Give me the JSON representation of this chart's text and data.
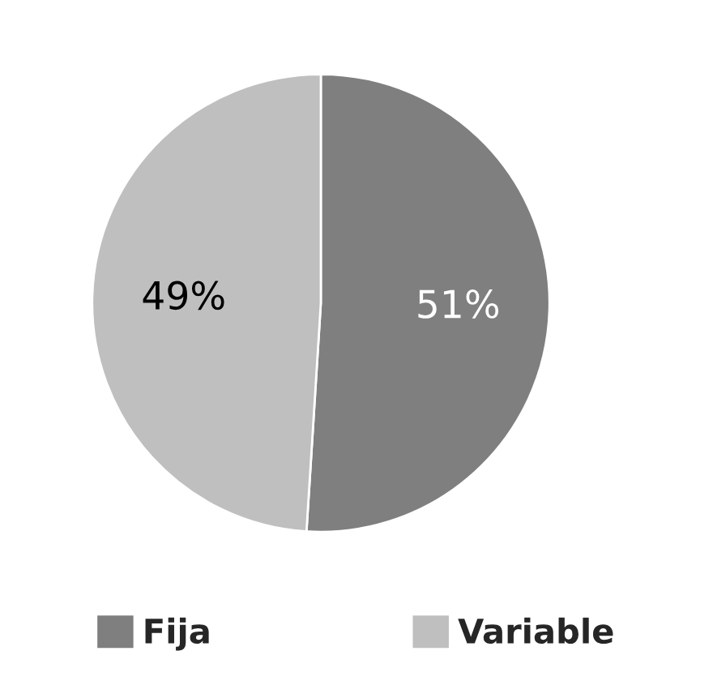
{
  "chart_data": {
    "type": "pie",
    "categories": [
      "Fija",
      "Variable"
    ],
    "values": [
      51,
      49
    ],
    "colors": [
      "#7f7f7f",
      "#bfbfbf"
    ],
    "value_labels": [
      "51%",
      "49%"
    ],
    "legend": "bottom"
  }
}
